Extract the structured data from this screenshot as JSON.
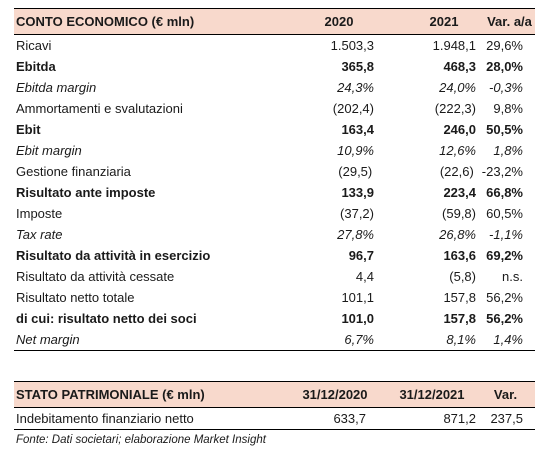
{
  "income": {
    "headers": [
      "CONTO ECONOMICO (€ mln)",
      "2020",
      "2021",
      "Var. a/a"
    ],
    "rows": [
      {
        "label": "Ricavi",
        "v2020": "1.503,3",
        "v2021": "1.948,1",
        "var": "29,6%",
        "style": "normal"
      },
      {
        "label": "Ebitda",
        "v2020": "365,8",
        "v2021": "468,3",
        "var": "28,0%",
        "style": "bold"
      },
      {
        "label": "Ebitda margin",
        "v2020": "24,3%",
        "v2021": "24,0%",
        "var": "-0,3%",
        "style": "italic"
      },
      {
        "label": "Ammortamenti e svalutazioni",
        "v2020": "(202,4)",
        "v2021": "(222,3)",
        "var": "9,8%",
        "style": "normal"
      },
      {
        "label": "Ebit",
        "v2020": "163,4",
        "v2021": "246,0",
        "var": "50,5%",
        "style": "bold"
      },
      {
        "label": "Ebit margin",
        "v2020": "10,9%",
        "v2021": "12,6%",
        "var": "1,8%",
        "style": "italic"
      },
      {
        "label": "Gestione finanziaria",
        "v2020": "(29,5)",
        "v2021": "(22,6)",
        "var": "-23,2%",
        "style": "normal"
      },
      {
        "label": "Risultato ante imposte",
        "v2020": "133,9",
        "v2021": "223,4",
        "var": "66,8%",
        "style": "bold"
      },
      {
        "label": "Imposte",
        "v2020": "(37,2)",
        "v2021": "(59,8)",
        "var": "60,5%",
        "style": "normal"
      },
      {
        "label": "Tax rate",
        "v2020": "27,8%",
        "v2021": "26,8%",
        "var": "-1,1%",
        "style": "italic"
      },
      {
        "label": "Risultato da attività in esercizio",
        "v2020": "96,7",
        "v2021": "163,6",
        "var": "69,2%",
        "style": "bold"
      },
      {
        "label": "Risultato da attività cessate",
        "v2020": "4,4",
        "v2021": "(5,8)",
        "var": "n.s.",
        "style": "normal"
      },
      {
        "label": "Risultato netto totale",
        "v2020": "101,1",
        "v2021": "157,8",
        "var": "56,2%",
        "style": "normal"
      },
      {
        "label": "di cui: risultato netto dei soci",
        "v2020": "101,0",
        "v2021": "157,8",
        "var": "56,2%",
        "style": "bold"
      },
      {
        "label": "Net margin",
        "v2020": "6,7%",
        "v2021": "8,1%",
        "var": "1,4%",
        "style": "italic"
      }
    ]
  },
  "balance": {
    "headers": [
      "STATO PATRIMONIALE (€ mln)",
      "31/12/2020",
      "31/12/2021",
      "Var."
    ],
    "rows": [
      {
        "label": "Indebitamento finanziario netto",
        "v2020": "633,7",
        "v2021": "871,2",
        "var": "237,5",
        "style": "normal"
      }
    ]
  },
  "source": "Fonte: Dati societari; elaborazione Market Insight",
  "colors": {
    "header_bg": "#f8d9cc"
  }
}
